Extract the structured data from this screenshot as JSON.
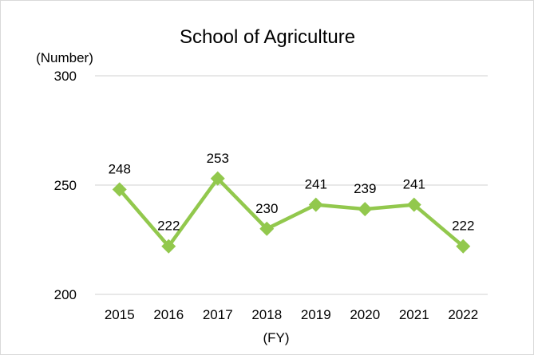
{
  "chart_data": {
    "type": "line",
    "title": "School of Agriculture",
    "ylabel": "(Number)",
    "xlabel": "(FY)",
    "categories": [
      "2015",
      "2016",
      "2017",
      "2018",
      "2019",
      "2020",
      "2021",
      "2022"
    ],
    "series": [
      {
        "values": [
          248,
          222,
          253,
          230,
          241,
          239,
          241,
          222
        ]
      }
    ],
    "ylim": [
      200,
      300
    ],
    "yticks": [
      200,
      250,
      300
    ],
    "grid": "horizontal",
    "legend": "none",
    "colors": {
      "series": "#92c84d",
      "grid": "#d9d9d9",
      "text": "#000000"
    }
  }
}
